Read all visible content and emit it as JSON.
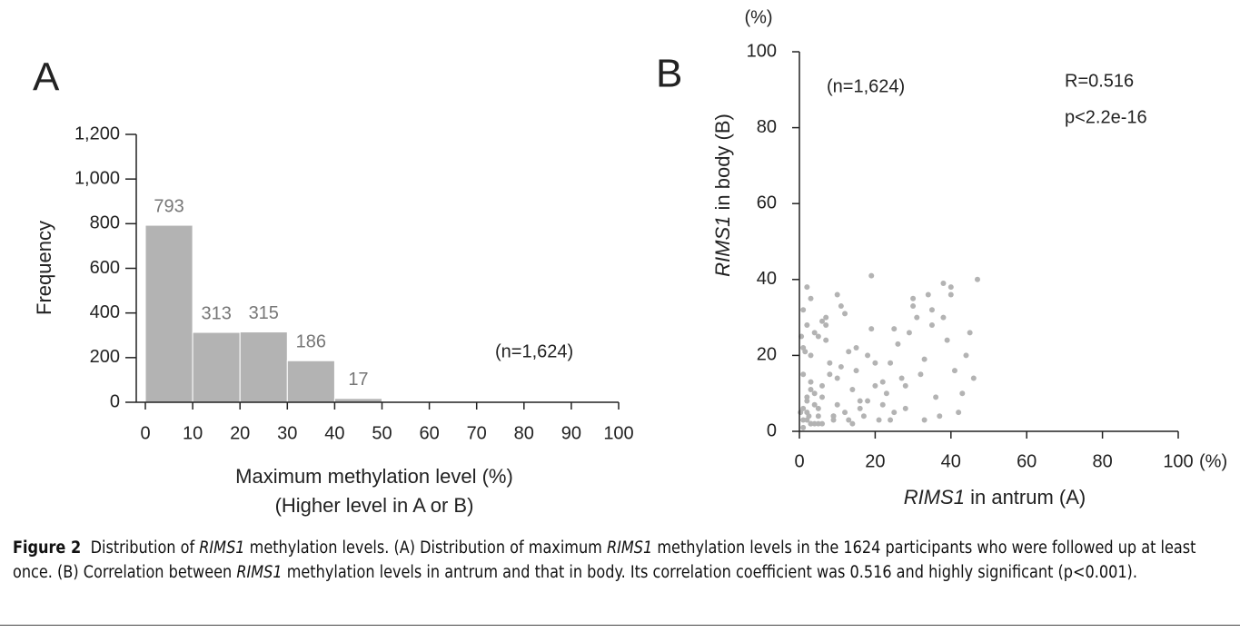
{
  "chart_data": [
    {
      "type": "histogram",
      "panel_label": "A",
      "bins": [
        0,
        10,
        20,
        30,
        40,
        50
      ],
      "counts": [
        793,
        313,
        315,
        186,
        17
      ],
      "color": "#b3b3b3",
      "xlim": [
        0,
        100
      ],
      "xticks": [
        0,
        10,
        20,
        30,
        40,
        50,
        60,
        70,
        80,
        90,
        100
      ],
      "ylim": [
        0,
        1200
      ],
      "yticks": [
        0,
        200,
        400,
        600,
        800,
        {
          "value": 1000,
          "label": "1,000"
        },
        {
          "value": 1200,
          "label": "1,200"
        }
      ],
      "xlabel": [
        "Maximum methylation level (%)",
        "(Higher level in A or B)"
      ],
      "ylabel": "Frequency",
      "annotation": "(n=1,624)"
    },
    {
      "type": "scatter",
      "panel_label": "B",
      "color": "#b3b3b3",
      "xlim": [
        0,
        100
      ],
      "xticks": [
        0,
        20,
        40,
        60,
        80,
        100
      ],
      "ylim": [
        0,
        100
      ],
      "yticks": [
        0,
        20,
        40,
        60,
        80,
        100
      ],
      "x_unit": "(%)",
      "y_unit": "(%)",
      "xlabel": [
        "RIMS1",
        " in antrum (A)"
      ],
      "ylabel": [
        "RIMS1",
        " in body (B)"
      ],
      "annotations": [
        "(n=1,624)",
        "R=0.516",
        "p<2.2e-16"
      ],
      "x": [
        1,
        2,
        1,
        3,
        0.5,
        2,
        4,
        1,
        3,
        5,
        2,
        6,
        1,
        4,
        7,
        3,
        8,
        2,
        5,
        9,
        1,
        10,
        3,
        6,
        12,
        4,
        2,
        14,
        7,
        5,
        15,
        9,
        3,
        11,
        16,
        1,
        18,
        6,
        13,
        20,
        8,
        19,
        4,
        22,
        10,
        17,
        2,
        24,
        12,
        21,
        5,
        25,
        15,
        27,
        7,
        23,
        19,
        28,
        11,
        30,
        14,
        26,
        3,
        31,
        18,
        33,
        9,
        29,
        22,
        34,
        6,
        35,
        16,
        32,
        25,
        36,
        13,
        37,
        20,
        38,
        28,
        39,
        10,
        40,
        24,
        41,
        30,
        42,
        35,
        43,
        38,
        44,
        33,
        45,
        40,
        46,
        47,
        0.3,
        1.5,
        2.5
      ],
      "y": [
        3,
        8,
        15,
        2,
        25,
        5,
        10,
        32,
        20,
        4,
        38,
        12,
        1,
        7,
        30,
        2,
        18,
        28,
        6,
        3,
        22,
        14,
        35,
        9,
        5,
        26,
        3,
        11,
        24,
        2,
        16,
        4,
        13,
        33,
        8,
        6,
        20,
        29,
        3,
        12,
        15,
        27,
        2,
        7,
        36,
        4,
        9,
        18,
        31,
        3,
        25,
        5,
        22,
        14,
        28,
        10,
        41,
        6,
        17,
        35,
        2,
        23,
        11,
        30,
        8,
        19,
        4,
        26,
        13,
        36,
        2,
        32,
        6,
        15,
        27,
        9,
        21,
        4,
        18,
        30,
        12,
        24,
        7,
        38,
        3,
        16,
        33,
        5,
        28,
        10,
        39,
        20,
        3,
        26,
        36,
        14,
        40,
        5,
        21,
        4
      ]
    }
  ],
  "caption": {
    "label": "Figure 2",
    "parts": [
      "Distribution of ",
      "RIMS1",
      " methylation levels. (A) Distribution of maximum ",
      "RIMS1",
      " methylation levels in the 1624 participants who were followed up at least once. (B) Correlation between ",
      "RIMS1",
      " methylation levels in antrum and that in body. Its correlation coefficient was 0.516 and highly significant (p<0.001)."
    ]
  }
}
